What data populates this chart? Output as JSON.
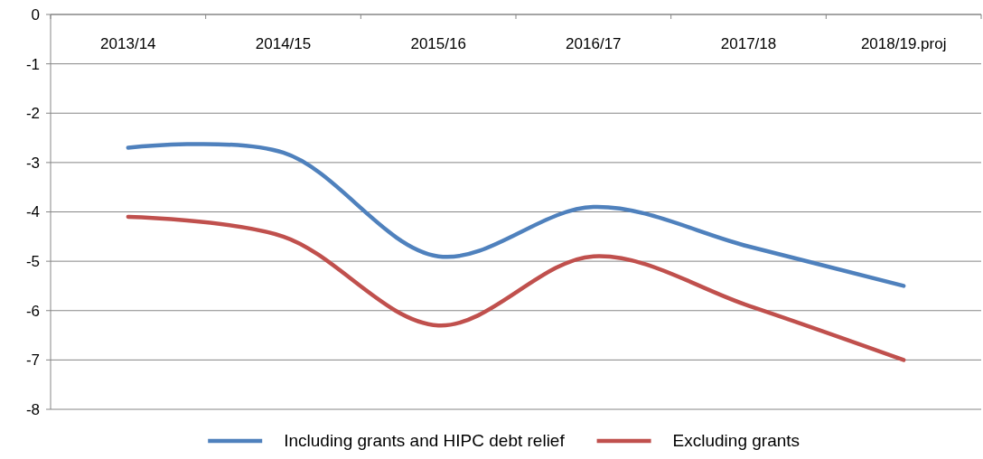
{
  "chart_data": {
    "type": "line",
    "categories": [
      "2013/14",
      "2014/15",
      "2015/16",
      "2016/17",
      "2017/18",
      "2018/19.proj"
    ],
    "series": [
      {
        "name": "Including grants and HIPC debt relief",
        "color": "#4f81bd",
        "values": [
          -2.7,
          -2.8,
          -4.9,
          -3.9,
          -4.7,
          -5.5
        ]
      },
      {
        "name": "Excluding grants",
        "color": "#c0504d",
        "values": [
          -4.1,
          -4.5,
          -6.3,
          -4.9,
          -5.9,
          -7.0
        ]
      }
    ],
    "ylim": [
      -8,
      0
    ],
    "yticks": [
      -8,
      -7,
      -6,
      -5,
      -4,
      -3,
      -2,
      -1,
      0
    ],
    "grid": "y",
    "legend": "bottom",
    "marker": "none",
    "line_style": "solid"
  }
}
